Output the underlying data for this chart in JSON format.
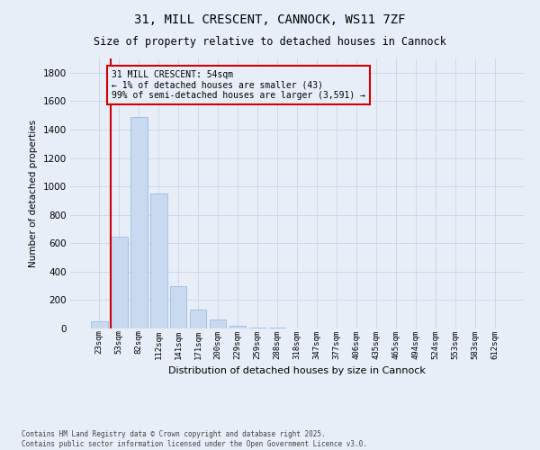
{
  "title1": "31, MILL CRESCENT, CANNOCK, WS11 7ZF",
  "title2": "Size of property relative to detached houses in Cannock",
  "xlabel": "Distribution of detached houses by size in Cannock",
  "ylabel": "Number of detached properties",
  "bar_color": "#c9d9f0",
  "bar_edge_color": "#8cb4d8",
  "background_color": "#e8eef8",
  "categories": [
    "23sqm",
    "53sqm",
    "82sqm",
    "112sqm",
    "141sqm",
    "171sqm",
    "200sqm",
    "229sqm",
    "259sqm",
    "288sqm",
    "318sqm",
    "347sqm",
    "377sqm",
    "406sqm",
    "435sqm",
    "465sqm",
    "494sqm",
    "524sqm",
    "553sqm",
    "583sqm",
    "612sqm"
  ],
  "values": [
    48,
    648,
    1490,
    950,
    295,
    135,
    65,
    22,
    8,
    4,
    2,
    2,
    2,
    1,
    0,
    0,
    0,
    0,
    0,
    0,
    0
  ],
  "ylim": [
    0,
    1900
  ],
  "yticks": [
    0,
    200,
    400,
    600,
    800,
    1000,
    1200,
    1400,
    1600,
    1800
  ],
  "annotation_title": "31 MILL CRESCENT: 54sqm",
  "annotation_line1": "← 1% of detached houses are smaller (43)",
  "annotation_line2": "99% of semi-detached houses are larger (3,591) →",
  "footnote1": "Contains HM Land Registry data © Crown copyright and database right 2025.",
  "footnote2": "Contains public sector information licensed under the Open Government Licence v3.0.",
  "grid_color": "#c8d4e8",
  "annotation_box_color": "#cc0000",
  "marker_line_color": "#cc0000"
}
